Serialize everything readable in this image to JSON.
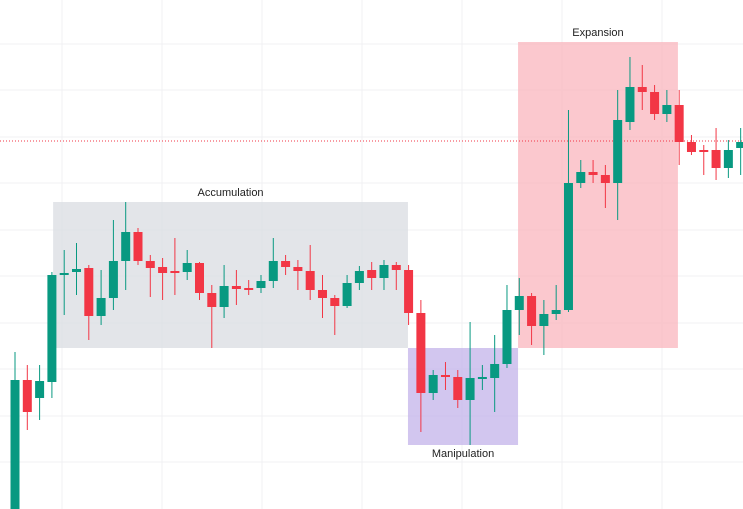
{
  "chart_data": {
    "type": "candlestick",
    "up_color": "#089981",
    "down_color": "#f23645",
    "xlim": [
      -1.22,
      59.19
    ],
    "ylim": [
      0,
      509
    ],
    "open": [
      0,
      129,
      111,
      127,
      235,
      237,
      241,
      193,
      211,
      248,
      277,
      248,
      242,
      238,
      237,
      246,
      216,
      202,
      223,
      221,
      221,
      228,
      248,
      242,
      238,
      219,
      211,
      203,
      226,
      239,
      231,
      244,
      239,
      196,
      116,
      134,
      132,
      109,
      131,
      131,
      145,
      199,
      213,
      183,
      195,
      199,
      326,
      337,
      334,
      326,
      387,
      422,
      417,
      395,
      404,
      367,
      359,
      359,
      341,
      361
    ],
    "high": [
      157,
      144,
      144,
      237,
      259,
      266,
      244,
      239,
      289,
      307,
      281,
      254,
      251,
      271,
      259,
      247,
      224,
      244,
      239,
      229,
      234,
      271,
      254,
      249,
      264,
      234,
      214,
      234,
      243,
      247,
      249,
      247,
      244,
      209,
      139,
      147,
      139,
      187,
      144,
      174,
      224,
      231,
      216,
      209,
      224,
      399,
      349,
      349,
      344,
      419,
      452,
      444,
      424,
      419,
      419,
      374,
      364,
      381,
      369,
      381
    ],
    "low": [
      0,
      79,
      89,
      111,
      194,
      214,
      169,
      184,
      199,
      219,
      244,
      212,
      209,
      214,
      229,
      209,
      161,
      191,
      204,
      214,
      216,
      221,
      234,
      219,
      209,
      191,
      174,
      201,
      219,
      219,
      219,
      219,
      184,
      77,
      109,
      119,
      101,
      64,
      119,
      97,
      141,
      174,
      164,
      154,
      189,
      197,
      321,
      326,
      301,
      289,
      379,
      399,
      389,
      387,
      344,
      354,
      334,
      329,
      331,
      334
    ],
    "close": [
      129,
      97,
      128,
      234,
      236,
      240,
      193,
      211,
      248,
      277,
      248,
      241,
      236,
      236,
      246,
      216,
      202,
      223,
      220,
      220,
      228,
      248,
      242,
      238,
      219,
      211,
      203,
      226,
      238,
      231,
      244,
      239,
      196,
      116,
      134,
      132,
      109,
      131,
      132,
      145,
      199,
      213,
      183,
      195,
      199,
      326,
      337,
      334,
      326,
      389,
      422,
      417,
      395,
      404,
      367,
      357,
      357,
      341,
      359,
      367
    ],
    "price_line": 368,
    "price_line_color": "#f23645",
    "zones": [
      {
        "label": "Accumulation",
        "from": 3.1,
        "to": 31.95,
        "y_low": 161,
        "y_high": 307,
        "color": "#d9dce1"
      },
      {
        "label": "Manipulation",
        "from": 31.95,
        "to": 40.9,
        "y_low": 64,
        "y_high": 161,
        "color": "#c3b3ea"
      },
      {
        "label": "Expansion",
        "from": 40.9,
        "to": 53.9,
        "y_low": 161,
        "y_high": 467,
        "color": "#f9b5bd"
      }
    ]
  }
}
